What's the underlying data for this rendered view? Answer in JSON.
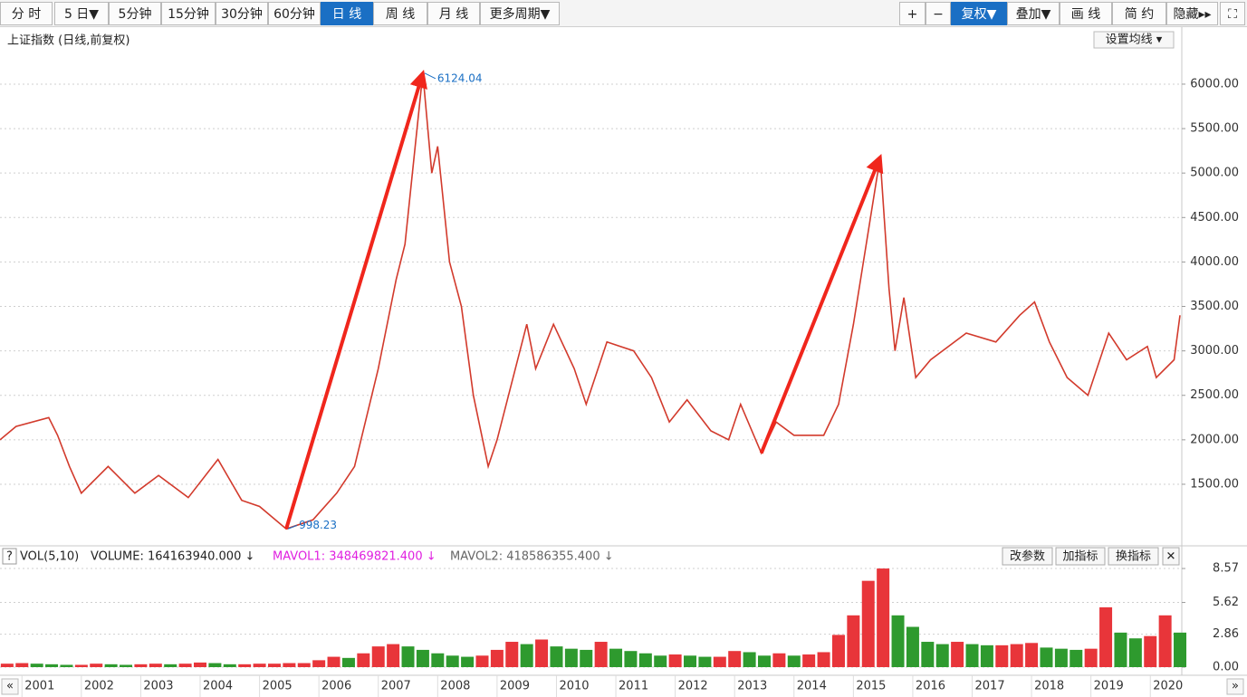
{
  "toolbar": {
    "left": [
      "分 时",
      "5 日▼",
      "5分钟",
      "15分钟",
      "30分钟",
      "60分钟",
      "日 线",
      "周 线",
      "月 线",
      "更多周期▼"
    ],
    "right": [
      "+",
      "−",
      "复权▼",
      "叠加▼",
      "画 线",
      "简 约",
      "隐藏▸▸",
      "⛶"
    ]
  },
  "ma_button": "设置均线 ▾",
  "indicator_buttons": [
    "改参数",
    "加指标",
    "换指标",
    "✕"
  ],
  "help": "?",
  "nav": {
    "prev": "«",
    "next": "»"
  },
  "chart_data": [
    {
      "type": "line",
      "title": "上证指数 (日线,前复权)",
      "color": "#d23a2c",
      "annotation_color": "#1a6fc4",
      "arrow_color": "#f0261c",
      "xlim": [
        2000.63,
        2020.53
      ],
      "xticks": [
        2001,
        2002,
        2003,
        2004,
        2005,
        2006,
        2007,
        2008,
        2009,
        2010,
        2011,
        2012,
        2013,
        2014,
        2015,
        2016,
        2017,
        2018,
        2019,
        2020
      ],
      "ylim": [
        838,
        6590
      ],
      "yticks": [
        {
          "value": 1500,
          "label": "1500.00"
        },
        {
          "value": 2000,
          "label": "2000.00"
        },
        {
          "value": 2500,
          "label": "2500.00"
        },
        {
          "value": 3000,
          "label": "3000.00"
        },
        {
          "value": 3500,
          "label": "3500.00"
        },
        {
          "value": 4000,
          "label": "4000.00"
        },
        {
          "value": 4500,
          "label": "4500.00"
        },
        {
          "value": 5000,
          "label": "5000.00"
        },
        {
          "value": 5500,
          "label": "5500.00"
        },
        {
          "value": 6000,
          "label": "6000.00"
        }
      ],
      "grid": true,
      "x": [
        2000.63,
        2000.9,
        2001.45,
        2001.6,
        2001.8,
        2002.0,
        2002.45,
        2002.9,
        2003.3,
        2003.8,
        2004.3,
        2004.7,
        2005.0,
        2005.45,
        2005.9,
        2006.3,
        2006.6,
        2007.0,
        2007.3,
        2007.45,
        2007.75,
        2007.9,
        2008.0,
        2008.2,
        2008.4,
        2008.6,
        2008.85,
        2009.0,
        2009.5,
        2009.65,
        2009.95,
        2010.3,
        2010.5,
        2010.85,
        2011.3,
        2011.6,
        2011.9,
        2012.2,
        2012.6,
        2012.9,
        2013.1,
        2013.45,
        2013.7,
        2014.0,
        2014.5,
        2014.75,
        2015.0,
        2015.45,
        2015.6,
        2015.7,
        2015.85,
        2016.05,
        2016.3,
        2016.9,
        2017.4,
        2017.8,
        2018.05,
        2018.3,
        2018.6,
        2018.95,
        2019.3,
        2019.6,
        2019.95,
        2020.1,
        2020.4,
        2020.5
      ],
      "values": [
        2000,
        2150,
        2250,
        2050,
        1700,
        1400,
        1700,
        1400,
        1600,
        1350,
        1780,
        1320,
        1250,
        998.23,
        1100,
        1400,
        1700,
        2800,
        3800,
        4200,
        6124.04,
        5000,
        5300,
        4000,
        3500,
        2500,
        1700,
        2000,
        3300,
        2800,
        3300,
        2800,
        2400,
        3100,
        3000,
        2700,
        2200,
        2450,
        2100,
        2000,
        2400,
        1850,
        2200,
        2050,
        2050,
        2400,
        3300,
        5178,
        3700,
        3000,
        3600,
        2700,
        2900,
        3200,
        3100,
        3400,
        3550,
        3100,
        2700,
        2500,
        3200,
        2900,
        3050,
        2700,
        2900,
        3400
      ]
    },
    {
      "type": "bar",
      "indicator": "VOL(5,10)",
      "legend": [
        {
          "label": "VOLUME: 164163940.000 ↓",
          "color": "#222222"
        },
        {
          "label": "MAVOL1: 348469821.400 ↓",
          "color": "#e020e0"
        },
        {
          "label": "MAVOL2: 418586355.400 ↓",
          "color": "#666666"
        }
      ],
      "colors": [
        "#e8353a",
        "#2e9a2e"
      ],
      "xlim": [
        2000.63,
        2020.53
      ],
      "ylim": [
        0,
        8.81
      ],
      "yticks": [
        {
          "value": 0,
          "label": "0.00"
        },
        2.86,
        5.62,
        8.57
      ],
      "x": [
        2000.75,
        2001.0,
        2001.25,
        2001.5,
        2001.75,
        2002.0,
        2002.25,
        2002.5,
        2002.75,
        2003.0,
        2003.25,
        2003.5,
        2003.75,
        2004.0,
        2004.25,
        2004.5,
        2004.75,
        2005.0,
        2005.25,
        2005.5,
        2005.75,
        2006.0,
        2006.25,
        2006.5,
        2006.75,
        2007.0,
        2007.25,
        2007.5,
        2007.75,
        2008.0,
        2008.25,
        2008.5,
        2008.75,
        2009.0,
        2009.25,
        2009.5,
        2009.75,
        2010.0,
        2010.25,
        2010.5,
        2010.75,
        2011.0,
        2011.25,
        2011.5,
        2011.75,
        2012.0,
        2012.25,
        2012.5,
        2012.75,
        2013.0,
        2013.25,
        2013.5,
        2013.75,
        2014.0,
        2014.25,
        2014.5,
        2014.75,
        2015.0,
        2015.25,
        2015.5,
        2015.75,
        2016.0,
        2016.25,
        2016.5,
        2016.75,
        2017.0,
        2017.25,
        2017.5,
        2017.75,
        2018.0,
        2018.25,
        2018.5,
        2018.75,
        2019.0,
        2019.25,
        2019.5,
        2019.75,
        2020.0,
        2020.25,
        2020.5
      ],
      "values": [
        0.3,
        0.35,
        0.3,
        0.25,
        0.2,
        0.2,
        0.3,
        0.25,
        0.2,
        0.25,
        0.3,
        0.25,
        0.3,
        0.4,
        0.35,
        0.25,
        0.25,
        0.3,
        0.3,
        0.35,
        0.35,
        0.6,
        0.9,
        0.8,
        1.2,
        1.8,
        2.0,
        1.8,
        1.5,
        1.2,
        1.0,
        0.9,
        1.0,
        1.5,
        2.2,
        2.0,
        2.4,
        1.8,
        1.6,
        1.5,
        2.2,
        1.6,
        1.4,
        1.2,
        1.0,
        1.1,
        1.0,
        0.9,
        0.9,
        1.4,
        1.3,
        1.0,
        1.2,
        1.0,
        1.1,
        1.3,
        2.8,
        4.5,
        7.5,
        8.57,
        4.5,
        3.5,
        2.2,
        2.0,
        2.2,
        2.0,
        1.9,
        1.9,
        2.0,
        2.1,
        1.7,
        1.6,
        1.5,
        1.6,
        5.2,
        3.0,
        2.5,
        2.7,
        4.5,
        3.0
      ]
    }
  ]
}
